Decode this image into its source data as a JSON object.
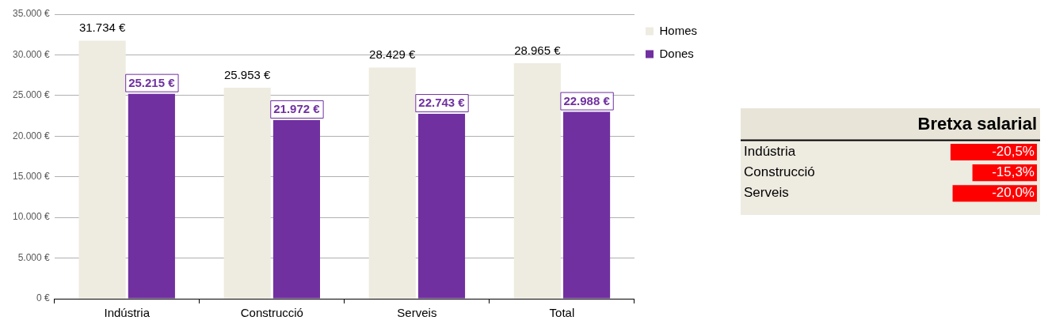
{
  "chart_data": [
    {
      "type": "bar",
      "categories": [
        "Indústria",
        "Construcció",
        "Serveis",
        "Total"
      ],
      "series": [
        {
          "name": "Homes",
          "color": "#eeebe0",
          "values": [
            31734,
            25953,
            28429,
            28965
          ],
          "value_labels": [
            "31.734 €",
            "25.953 €",
            "28.429 €",
            "28.965 €"
          ]
        },
        {
          "name": "Dones",
          "color": "#7030a0",
          "values": [
            25215,
            21972,
            22743,
            22988
          ],
          "value_labels": [
            "25.215 €",
            "21.972 €",
            "22.743 €",
            "22.988 €"
          ]
        }
      ],
      "ylim": [
        0,
        35000
      ],
      "yticks": [
        {
          "value": 0,
          "label": "0 €"
        },
        {
          "value": 5000,
          "label": "5.000 €"
        },
        {
          "value": 10000,
          "label": "10.000 €"
        },
        {
          "value": 15000,
          "label": "15.000 €"
        },
        {
          "value": 20000,
          "label": "20.000 €"
        },
        {
          "value": 25000,
          "label": "25.000 €"
        },
        {
          "value": 30000,
          "label": "30.000 €"
        },
        {
          "value": 35000,
          "label": "35.000 €"
        }
      ],
      "grid": "y",
      "legend": "top right"
    },
    {
      "type": "bar",
      "orientation": "horizontal",
      "title": "Bretxa salarial",
      "categories": [
        "Indústria",
        "Construcció",
        "Serveis"
      ],
      "values": [
        -20.5,
        -15.3,
        -20.0
      ],
      "color": "#ff0000",
      "value_labels": [
        "-20,5%",
        "-15,3%",
        "-20,0%"
      ],
      "tick_labels": "y"
    }
  ]
}
